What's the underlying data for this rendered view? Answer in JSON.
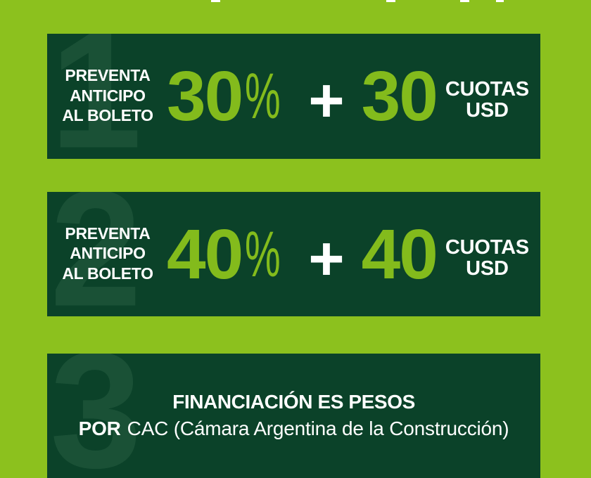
{
  "page": {
    "background_color": "#8CC11E",
    "panel_color": "#0B4229",
    "accent_color": "#83BB1C",
    "watermark_color": "#1D5439",
    "text_color": "#FFFFFF"
  },
  "plans": [
    {
      "number": "1",
      "label_lines": [
        "PREVENTA",
        "ANTICIPO",
        "AL BOLETO"
      ],
      "percent_value": "30",
      "percent_sign": "%",
      "plus": "+",
      "installments_value": "30",
      "installments_unit_line1": "CUOTAS",
      "installments_unit_line2": "USD"
    },
    {
      "number": "2",
      "label_lines": [
        "PREVENTA",
        "ANTICIPO",
        "AL BOLETO"
      ],
      "percent_value": "40",
      "percent_sign": "%",
      "plus": "+",
      "installments_value": "40",
      "installments_unit_line1": "CUOTAS",
      "installments_unit_line2": "USD"
    }
  ],
  "financing": {
    "number": "3",
    "title": "FINANCIACIÓN ES PESOS",
    "detail_bold": "POR",
    "detail_rest": "CAC (Cámara Argentina de la Construcción)"
  }
}
